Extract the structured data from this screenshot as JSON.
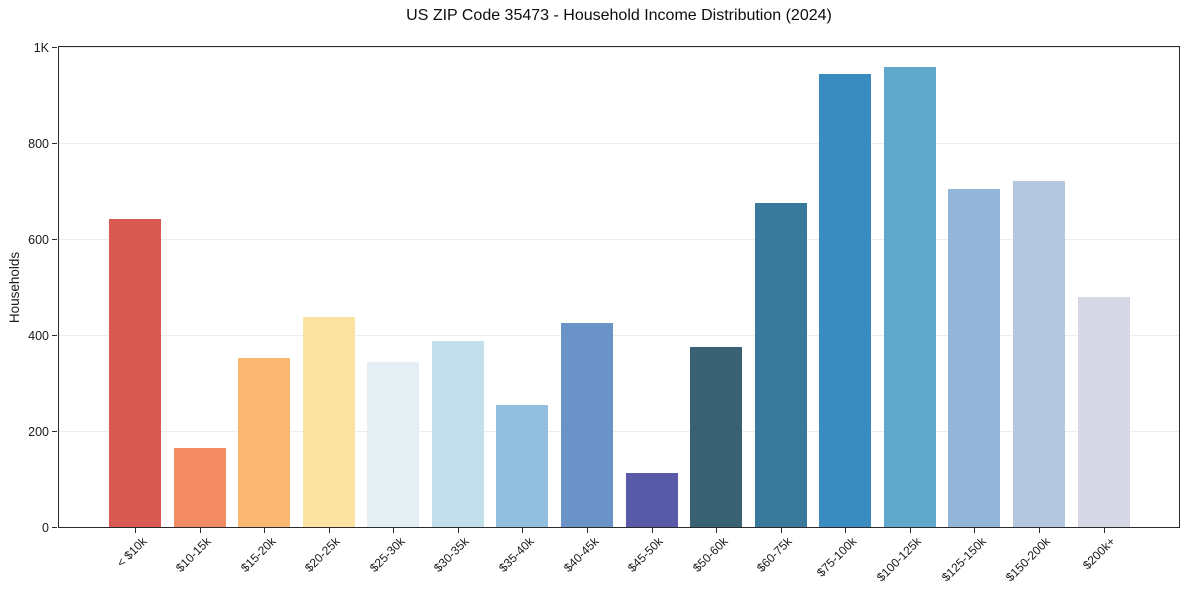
{
  "chart_data": {
    "type": "bar",
    "title": "US ZIP Code 35473 - Household Income Distribution (2024)",
    "xlabel": "",
    "ylabel": "Households",
    "categories": [
      "< $10k",
      "$10-15k",
      "$15-20k",
      "$20-25k",
      "$25-30k",
      "$30-35k",
      "$35-40k",
      "$40-45k",
      "$45-50k",
      "$50-60k",
      "$60-75k",
      "$75-100k",
      "$100-125k",
      "$125-150k",
      "$150-200k",
      "$200k+"
    ],
    "values": [
      643,
      165,
      352,
      438,
      344,
      387,
      255,
      426,
      112,
      376,
      675,
      945,
      960,
      704,
      722,
      480
    ],
    "bar_colors": [
      "#d85a52",
      "#f28a63",
      "#fab873",
      "#fde3a2",
      "#e4eff4",
      "#c1e0ec",
      "#92bfdd",
      "#6b93c7",
      "#585aa8",
      "#386173",
      "#38799c",
      "#398bc0",
      "#5fa7cb",
      "#93b6d8",
      "#b5c6df",
      "#d6d8e6"
    ],
    "yticks": [
      {
        "value": 0,
        "label": "0"
      },
      {
        "value": 200,
        "label": "200"
      },
      {
        "value": 400,
        "label": "400"
      },
      {
        "value": 600,
        "label": "600"
      },
      {
        "value": 800,
        "label": "800"
      },
      {
        "value": 1000,
        "label": "1K"
      }
    ],
    "ylim": [
      0,
      1005
    ],
    "grid": "horizontal",
    "grid_color": "#ededed",
    "background": "#ffffff",
    "legend": "none"
  }
}
